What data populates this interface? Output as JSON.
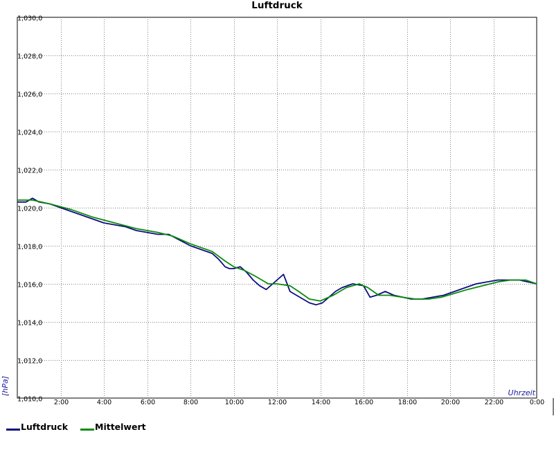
{
  "chart_data": {
    "type": "line",
    "title": "Luftdruck",
    "ylabel": "[hPa]",
    "xlabel": "Uhrzeit",
    "ylim": [
      1010.0,
      1030.0
    ],
    "xlim": [
      0,
      24
    ],
    "y_ticks": [
      "1,010,0",
      "1,012,0",
      "1,014,0",
      "1,016,0",
      "1,018,0",
      "1,020,0",
      "1,022,0",
      "1,024,0",
      "1,026,0",
      "1,028,0",
      "1,030,0"
    ],
    "x_ticks": [
      "2:00",
      "4:00",
      "6:00",
      "8:00",
      "10:00",
      "12:00",
      "14:00",
      "16:00",
      "18:00",
      "20:00",
      "22:00",
      "0:00"
    ],
    "grid": true,
    "legend_position": "bottom-left",
    "series": [
      {
        "name": "Luftdruck",
        "color": "#0d0d80",
        "x": [
          0,
          0.4,
          0.7,
          1.0,
          1.5,
          2.0,
          2.5,
          3.0,
          3.5,
          4.0,
          4.5,
          5.0,
          5.5,
          6.0,
          6.5,
          7.0,
          7.5,
          8.0,
          8.5,
          9.0,
          9.3,
          9.6,
          9.8,
          10.0,
          10.3,
          10.6,
          10.9,
          11.2,
          11.5,
          11.8,
          12.0,
          12.3,
          12.6,
          12.9,
          13.2,
          13.5,
          13.8,
          14.1,
          14.4,
          14.7,
          15.0,
          15.5,
          16.0,
          16.3,
          16.6,
          17.0,
          17.4,
          17.8,
          18.2,
          18.7,
          19.2,
          19.7,
          20.2,
          20.7,
          21.2,
          21.7,
          22.2,
          22.7,
          23.2,
          23.6,
          24.0
        ],
        "y": [
          1020.3,
          1020.3,
          1020.5,
          1020.3,
          1020.2,
          1020.0,
          1019.8,
          1019.6,
          1019.4,
          1019.2,
          1019.1,
          1019.0,
          1018.8,
          1018.7,
          1018.6,
          1018.6,
          1018.3,
          1018.0,
          1017.8,
          1017.6,
          1017.3,
          1016.9,
          1016.8,
          1016.8,
          1016.9,
          1016.6,
          1016.2,
          1015.9,
          1015.7,
          1016.0,
          1016.2,
          1016.5,
          1015.6,
          1015.4,
          1015.2,
          1015.0,
          1014.9,
          1015.0,
          1015.3,
          1015.6,
          1015.8,
          1016.0,
          1015.9,
          1015.3,
          1015.4,
          1015.6,
          1015.4,
          1015.3,
          1015.2,
          1015.2,
          1015.3,
          1015.4,
          1015.6,
          1015.8,
          1016.0,
          1016.1,
          1016.2,
          1016.2,
          1016.2,
          1016.1,
          1016.0
        ]
      },
      {
        "name": "Mittelwert",
        "color": "#0a8a0a",
        "x": [
          0,
          0.7,
          1.5,
          2.5,
          3.5,
          4.5,
          5.5,
          6.5,
          7.2,
          8.0,
          9.0,
          9.6,
          10.0,
          10.5,
          11.0,
          11.6,
          12.0,
          12.6,
          13.0,
          13.5,
          14.0,
          14.6,
          15.2,
          15.8,
          16.2,
          16.7,
          17.2,
          17.8,
          18.4,
          19.0,
          19.6,
          20.2,
          20.8,
          21.5,
          22.2,
          22.8,
          23.5,
          24.0
        ],
        "y": [
          1020.4,
          1020.4,
          1020.2,
          1019.9,
          1019.5,
          1019.2,
          1018.9,
          1018.7,
          1018.5,
          1018.1,
          1017.7,
          1017.2,
          1016.9,
          1016.7,
          1016.4,
          1016.0,
          1016.0,
          1015.9,
          1015.6,
          1015.2,
          1015.1,
          1015.4,
          1015.8,
          1016.0,
          1015.8,
          1015.4,
          1015.4,
          1015.3,
          1015.2,
          1015.2,
          1015.3,
          1015.5,
          1015.7,
          1015.9,
          1016.1,
          1016.2,
          1016.2,
          1016.0
        ]
      }
    ]
  }
}
